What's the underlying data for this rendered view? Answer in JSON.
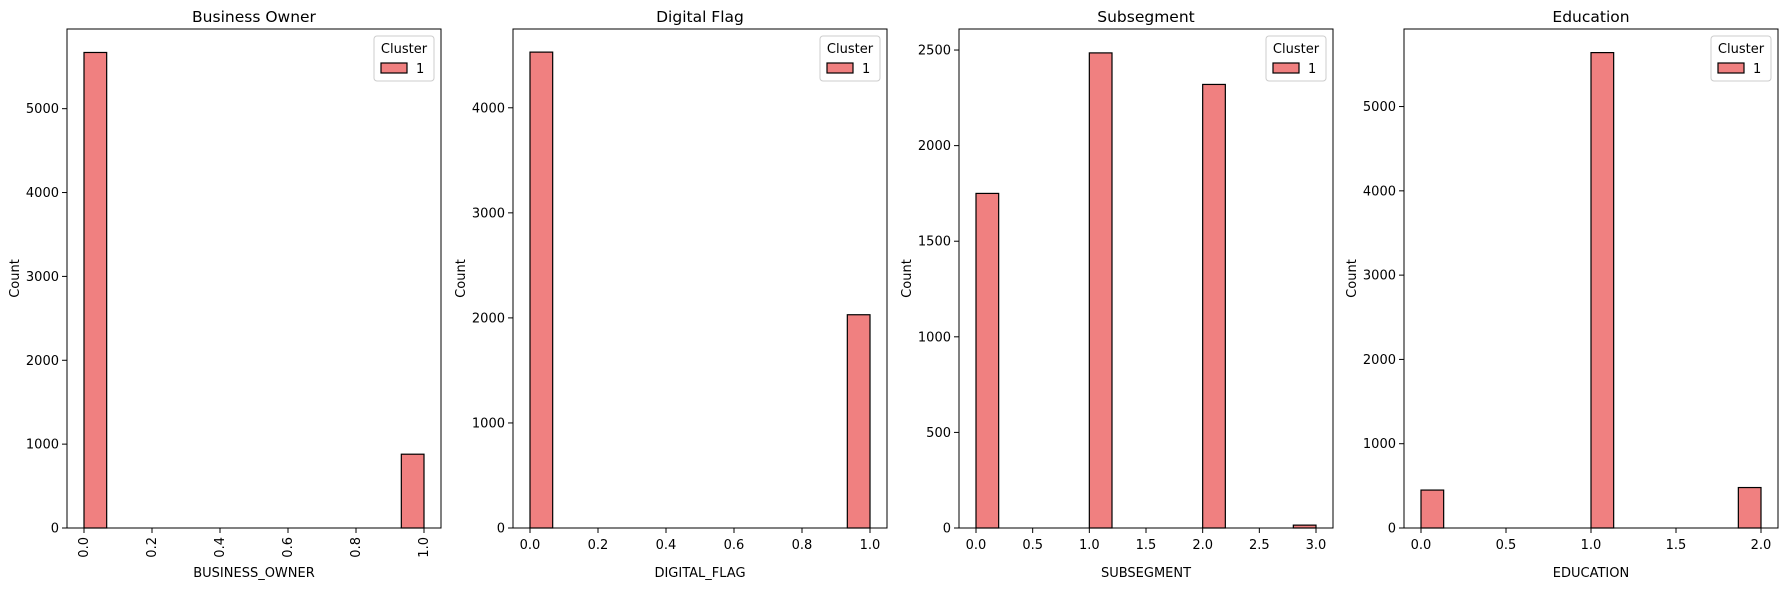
{
  "chart_data": [
    {
      "type": "bar",
      "title": "Business Owner",
      "xlabel": "BUSINESS_OWNER",
      "ylabel": "Count",
      "xlim": [
        -0.05,
        1.05
      ],
      "ylim": [
        0,
        5950
      ],
      "xticks": [
        0.0,
        0.2,
        0.4,
        0.6,
        0.8,
        1.0
      ],
      "xtick_labels": [
        "0.0",
        "0.2",
        "0.4",
        "0.6",
        "0.8",
        "1.0"
      ],
      "xtick_rotation": 90,
      "yticks": [
        0,
        1000,
        2000,
        3000,
        4000,
        5000
      ],
      "ytick_labels": [
        "0",
        "1000",
        "2000",
        "3000",
        "4000",
        "5000"
      ],
      "bin_width": 0.0667,
      "bins": [
        {
          "x0": 0.0,
          "x1": 0.0667,
          "count": 5670
        },
        {
          "x0": 0.9333,
          "x1": 1.0,
          "count": 880
        }
      ],
      "legend": {
        "title": "Cluster",
        "entries": [
          "1"
        ],
        "position": "upper-right"
      }
    },
    {
      "type": "bar",
      "title": "Digital Flag",
      "xlabel": "DIGITAL_FLAG",
      "ylabel": "Count",
      "xlim": [
        -0.05,
        1.05
      ],
      "ylim": [
        0,
        4750
      ],
      "xticks": [
        0.0,
        0.2,
        0.4,
        0.6,
        0.8,
        1.0
      ],
      "xtick_labels": [
        "0.0",
        "0.2",
        "0.4",
        "0.6",
        "0.8",
        "1.0"
      ],
      "xtick_rotation": 0,
      "yticks": [
        0,
        1000,
        2000,
        3000,
        4000
      ],
      "ytick_labels": [
        "0",
        "1000",
        "2000",
        "3000",
        "4000"
      ],
      "bin_width": 0.0667,
      "bins": [
        {
          "x0": 0.0,
          "x1": 0.0667,
          "count": 4530
        },
        {
          "x0": 0.9333,
          "x1": 1.0,
          "count": 2030
        }
      ],
      "legend": {
        "title": "Cluster",
        "entries": [
          "1"
        ],
        "position": "upper-right"
      }
    },
    {
      "type": "bar",
      "title": "Subsegment",
      "xlabel": "SUBSEGMENT",
      "ylabel": "Count",
      "xlim": [
        -0.15,
        3.15
      ],
      "ylim": [
        0,
        2610
      ],
      "xticks": [
        0.0,
        0.5,
        1.0,
        1.5,
        2.0,
        2.5,
        3.0
      ],
      "xtick_labels": [
        "0.0",
        "0.5",
        "1.0",
        "1.5",
        "2.0",
        "2.5",
        "3.0"
      ],
      "xtick_rotation": 0,
      "yticks": [
        0,
        500,
        1000,
        1500,
        2000,
        2500
      ],
      "ytick_labels": [
        "0",
        "500",
        "1000",
        "1500",
        "2000",
        "2500"
      ],
      "bin_width": 0.2,
      "bins": [
        {
          "x0": 0.0,
          "x1": 0.2,
          "count": 1750
        },
        {
          "x0": 1.0,
          "x1": 1.2,
          "count": 2485
        },
        {
          "x0": 2.0,
          "x1": 2.2,
          "count": 2320
        },
        {
          "x0": 2.8,
          "x1": 3.0,
          "count": 15
        }
      ],
      "legend": {
        "title": "Cluster",
        "entries": [
          "1"
        ],
        "position": "upper-right"
      }
    },
    {
      "type": "bar",
      "title": "Education",
      "xlabel": "EDUCATION",
      "ylabel": "Count",
      "xlim": [
        -0.1,
        2.1
      ],
      "ylim": [
        0,
        5920
      ],
      "xticks": [
        0.0,
        0.5,
        1.0,
        1.5,
        2.0
      ],
      "xtick_labels": [
        "0.0",
        "0.5",
        "1.0",
        "1.5",
        "2.0"
      ],
      "xtick_rotation": 0,
      "yticks": [
        0,
        1000,
        2000,
        3000,
        4000,
        5000
      ],
      "ytick_labels": [
        "0",
        "1000",
        "2000",
        "3000",
        "4000",
        "5000"
      ],
      "bin_width": 0.1333,
      "bins": [
        {
          "x0": 0.0,
          "x1": 0.1333,
          "count": 450
        },
        {
          "x0": 1.0,
          "x1": 1.1333,
          "count": 5640
        },
        {
          "x0": 1.8667,
          "x1": 2.0,
          "count": 480
        }
      ],
      "legend": {
        "title": "Cluster",
        "entries": [
          "1"
        ],
        "position": "upper-right"
      }
    }
  ],
  "colors": {
    "bar_fill": "#f08080",
    "bar_edge": "#000000",
    "axis": "#000000",
    "background": "#ffffff"
  }
}
